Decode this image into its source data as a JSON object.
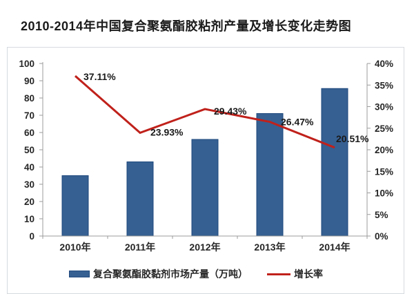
{
  "title": "2010-2014年中国复合聚氨酯胶粘剂产量及增长变化走势图",
  "chart_data": {
    "type": "combo_bar_line",
    "title": "2010-2014年中国复合聚氨酯胶粘剂产量及增长变化走势图",
    "categories": [
      "2010年",
      "2011年",
      "2012年",
      "2013年",
      "2014年"
    ],
    "series": [
      {
        "name": "复合聚氨酯胶黏剂市场产量（万吨）",
        "type": "bar",
        "axis": "left",
        "values": [
          35,
          43,
          56,
          71,
          85.5
        ],
        "color": "#366092"
      },
      {
        "name": "增长率",
        "type": "line",
        "axis": "right",
        "values": [
          37.11,
          23.93,
          29.43,
          26.47,
          20.51
        ],
        "labels": [
          "37.11%",
          "23.93%",
          "29.43%",
          "26.47%",
          "20.51%"
        ],
        "color": "#C0211B"
      }
    ],
    "left_axis": {
      "min": 0,
      "max": 100,
      "step": 10,
      "tick_labels": [
        "0",
        "10",
        "20",
        "30",
        "40",
        "50",
        "60",
        "70",
        "80",
        "90",
        "100"
      ]
    },
    "right_axis": {
      "min": 0,
      "max": 40,
      "step": 5,
      "tick_labels": [
        "0%",
        "5%",
        "10%",
        "15%",
        "20%",
        "25%",
        "30%",
        "35%",
        "40%"
      ]
    },
    "legend_position": "bottom",
    "grid": false
  },
  "legend": {
    "bar_label": "复合聚氨酯胶黏剂市场产量（万吨）",
    "line_label": "增长率"
  },
  "colors": {
    "bar_fill": "#366092",
    "bar_border": "#1F497D",
    "line": "#C0211B",
    "axis": "#9B9B9B",
    "text": "#262626",
    "frame_border": "#D6DADE"
  }
}
